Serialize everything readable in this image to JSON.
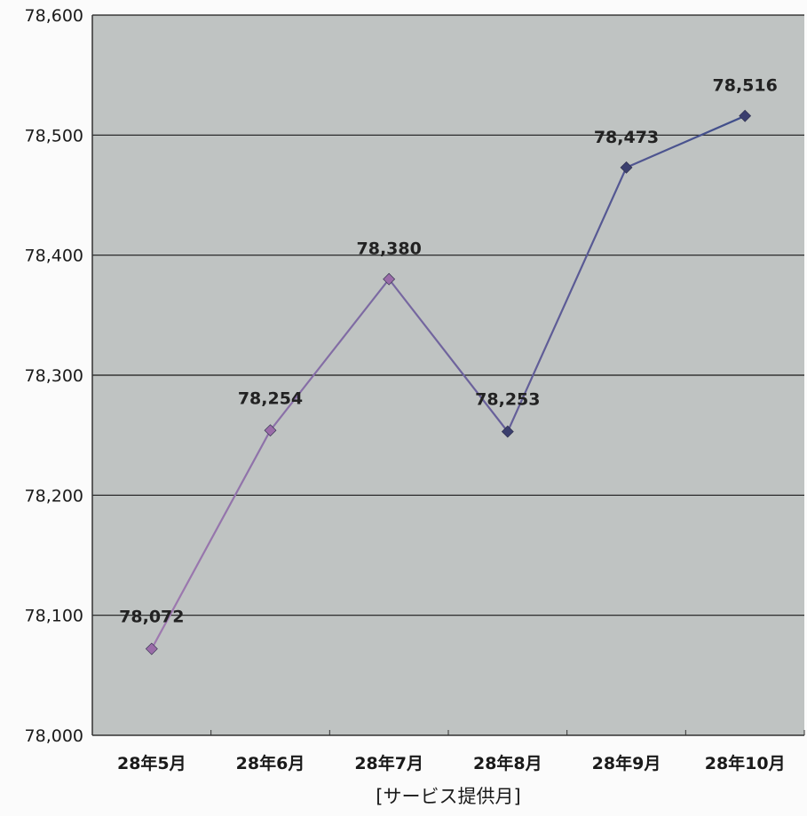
{
  "chart_data": {
    "type": "line",
    "categories": [
      "28年5月",
      "28年6月",
      "28年7月",
      "28年8月",
      "28年9月",
      "28年10月"
    ],
    "series": [
      {
        "values": [
          78072,
          78254,
          78380,
          78253,
          78473,
          78516
        ],
        "data_labels": [
          "78,072",
          "78,254",
          "78,380",
          "78,253",
          "78,473",
          "78,516"
        ]
      }
    ],
    "title": "",
    "xlabel": "[サービス提供月]",
    "ylabel": "",
    "ylim": [
      78000,
      78600
    ],
    "yticks": [
      78000,
      78100,
      78200,
      78300,
      78400,
      78500,
      78600
    ],
    "ytick_labels": [
      "78,000",
      "78,100",
      "78,200",
      "78,300",
      "78,400",
      "78,500",
      "78,600"
    ],
    "grid": true,
    "colors": {
      "plot_background": "#bfc3c2",
      "gridline": "#1a1a1a",
      "line_start": "#a07ab0",
      "line_end": "#3f4e8a",
      "marker_start": "#9a6ca8",
      "marker_end": "#3b3f6e"
    }
  }
}
